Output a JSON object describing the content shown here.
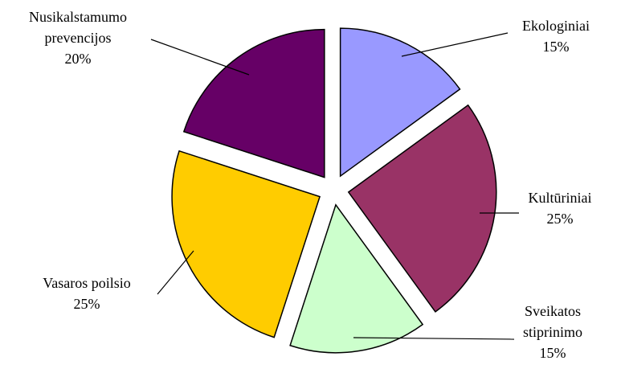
{
  "chart_data": {
    "type": "pie",
    "exploded": true,
    "legend": "none",
    "slices": [
      {
        "name": "Ekologiniai",
        "label_lines": [
          "Ekologiniai"
        ],
        "value": 15,
        "value_label": "15%",
        "color": "#9999FF"
      },
      {
        "name": "Kultūriniai",
        "label_lines": [
          "Kultūriniai"
        ],
        "value": 25,
        "value_label": "25%",
        "color": "#993366"
      },
      {
        "name": "Sveikatos stiprinimo",
        "label_lines": [
          "Sveikatos",
          "stiprinimo"
        ],
        "value": 15,
        "value_label": "15%",
        "color": "#CCFFCC"
      },
      {
        "name": "Vasaros poilsio",
        "label_lines": [
          "Vasaros poilsio"
        ],
        "value": 25,
        "value_label": "25%",
        "color": "#FFCC00"
      },
      {
        "name": "Nusikalstamumo prevencijos",
        "label_lines": [
          "Nusikalstamumo",
          "prevencijos"
        ],
        "value": 20,
        "value_label": "20%",
        "color": "#660066"
      }
    ]
  }
}
